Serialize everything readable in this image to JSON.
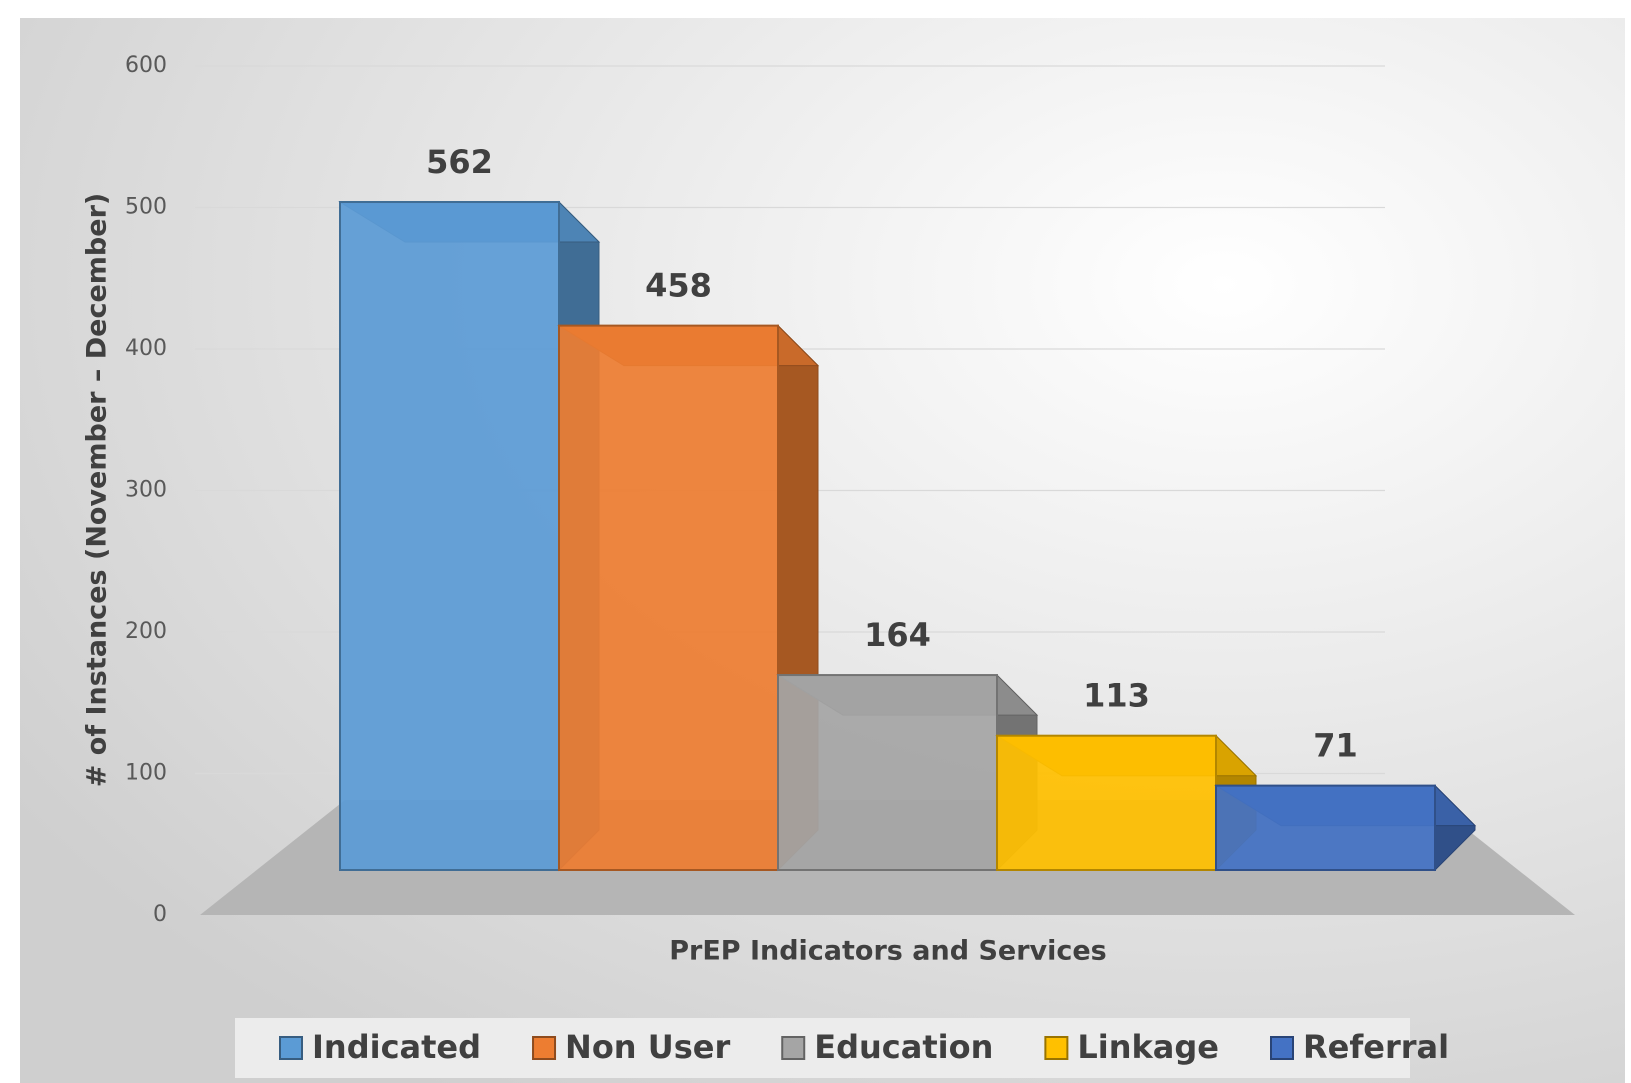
{
  "chart_data": {
    "type": "bar3d",
    "x_label": "PrEP Indicators and Services",
    "y_label": "# of Instances (November – December)",
    "series": [
      {
        "name": "Indicated",
        "color": "#5b9bd5",
        "values": [
          562
        ]
      },
      {
        "name": "Non User",
        "color": "#ed7d31",
        "values": [
          458
        ]
      },
      {
        "name": "Education",
        "color": "#a5a5a5",
        "values": [
          164
        ]
      },
      {
        "name": "Linkage",
        "color": "#ffc000",
        "values": [
          113
        ]
      },
      {
        "name": "Referral",
        "color": "#4472c4",
        "values": [
          71
        ]
      }
    ],
    "ylim": [
      0,
      600
    ],
    "yticks": [
      0,
      100,
      200,
      300,
      400,
      500,
      600
    ],
    "grid": true,
    "legend": "bottom"
  }
}
